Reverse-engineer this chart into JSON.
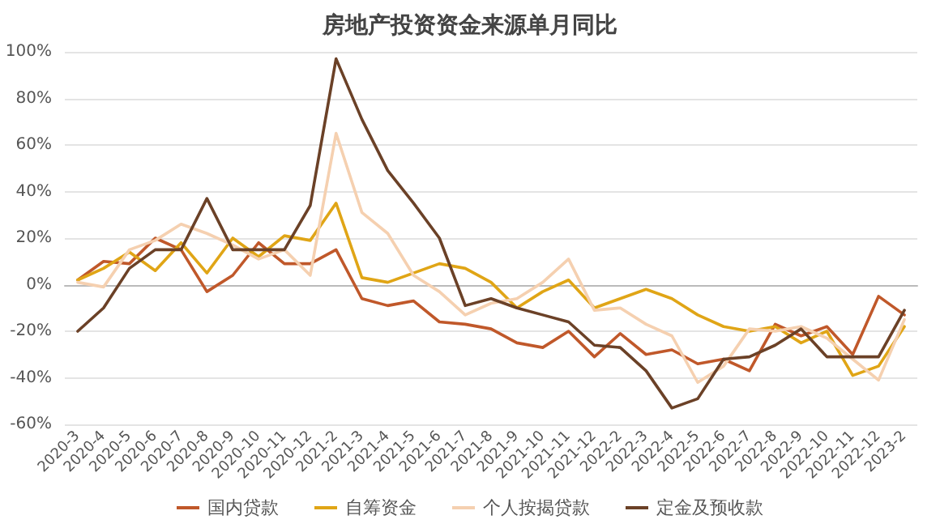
{
  "chart_data": {
    "type": "line",
    "title": "房地产投资资金来源单月同比",
    "categories": [
      "2020-3",
      "2020-4",
      "2020-5",
      "2020-6",
      "2020-7",
      "2020-8",
      "2020-9",
      "2020-10",
      "2020-11",
      "2020-12",
      "2021-2",
      "2021-3",
      "2021-4",
      "2021-5",
      "2021-6",
      "2021-7",
      "2021-8",
      "2021-9",
      "2021-10",
      "2021-11",
      "2021-12",
      "2022-2",
      "2022-3",
      "2022-4",
      "2022-5",
      "2022-6",
      "2022-7",
      "2022-8",
      "2022-9",
      "2022-10",
      "2022-11",
      "2022-12",
      "2023-2"
    ],
    "series": [
      {
        "name": "国内贷款",
        "color": "#c0582a",
        "values": [
          2,
          10,
          9,
          20,
          15,
          -3,
          4,
          18,
          9,
          9,
          15,
          -6,
          -9,
          -7,
          -16,
          -17,
          -19,
          -25,
          -27,
          -20,
          -31,
          -21,
          -30,
          -28,
          -34,
          -32,
          -37,
          -17,
          -22,
          -18,
          -30,
          -5,
          -13
        ]
      },
      {
        "name": "自筹资金",
        "color": "#e0a516",
        "values": [
          2,
          7,
          14,
          6,
          18,
          5,
          20,
          12,
          21,
          19,
          35,
          3,
          1,
          5,
          9,
          7,
          1,
          -10,
          -3,
          2,
          -10,
          -6,
          -2,
          -6,
          -13,
          -18,
          -20,
          -18,
          -25,
          -20,
          -39,
          -35,
          -18
        ]
      },
      {
        "name": "个人按揭贷款",
        "color": "#f5d0b0",
        "values": [
          1,
          -1,
          15,
          19,
          26,
          22,
          17,
          11,
          15,
          4,
          65,
          31,
          22,
          4,
          -3,
          -13,
          -8,
          -6,
          1,
          11,
          -11,
          -10,
          -17,
          -22,
          -42,
          -35,
          -19,
          -20,
          -18,
          -23,
          -32,
          -41,
          -15
        ]
      },
      {
        "name": "定金及预收款",
        "color": "#6b4127",
        "values": [
          -20,
          -10,
          7,
          15,
          15,
          37,
          15,
          15,
          15,
          34,
          97,
          71,
          49,
          35,
          20,
          -9,
          -6,
          -10,
          -13,
          -16,
          -26,
          -27,
          -37,
          -53,
          -49,
          -32,
          -31,
          -26,
          -19,
          -31,
          -31,
          -31,
          -11
        ]
      }
    ],
    "ylim": [
      -60,
      100
    ],
    "yticks": [
      {
        "value": -60,
        "label": "-60%"
      },
      {
        "value": -40,
        "label": "-40%"
      },
      {
        "value": -20,
        "label": "-20%"
      },
      {
        "value": 0,
        "label": "0%"
      },
      {
        "value": 20,
        "label": "20%"
      },
      {
        "value": 40,
        "label": "40%"
      },
      {
        "value": 60,
        "label": "60%"
      },
      {
        "value": 80,
        "label": "80%"
      },
      {
        "value": 100,
        "label": "100%"
      }
    ],
    "grid": "y",
    "legend": "bottom",
    "marker": "none",
    "line_style": "solid"
  }
}
